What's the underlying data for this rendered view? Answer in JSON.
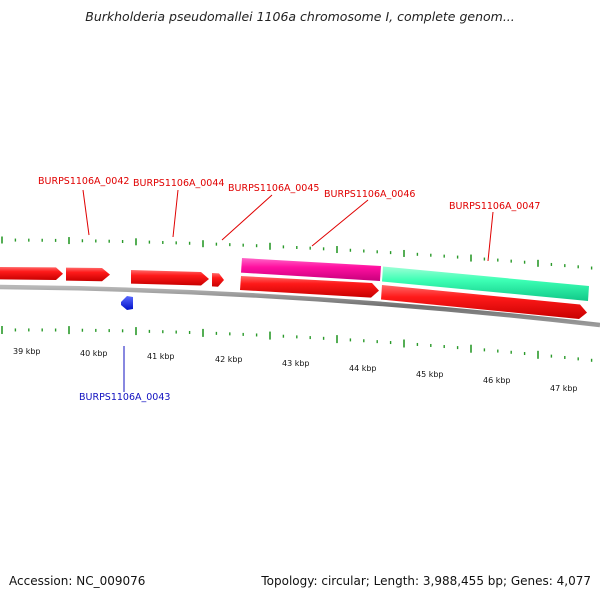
{
  "title": "Burkholderia pseudomallei 1106a chromosome I, complete genom...",
  "footer": {
    "accession": "Accession: NC_009076",
    "summary": "Topology: circular; Length: 3,988,455 bp; Genes: 4,077"
  },
  "genes": [
    {
      "id": "g0042",
      "label": "BURPS1106A_0042",
      "color": "#ff0000"
    },
    {
      "id": "g0043",
      "label": "BURPS1106A_0043",
      "color": "#0022ff"
    },
    {
      "id": "g0044",
      "label": "BURPS1106A_0044",
      "color": "#ff0000"
    },
    {
      "id": "g0045",
      "label": "BURPS1106A_0045",
      "color": "#ff0000"
    },
    {
      "id": "g0046",
      "label": "BURPS1106A_0046",
      "color": "#ff00a0"
    },
    {
      "id": "g0047",
      "label": "BURPS1106A_0047",
      "color": "#33ffb0"
    }
  ],
  "scale": {
    "ticks": [
      "39 kbp",
      "40 kbp",
      "41 kbp",
      "42 kbp",
      "43 kbp",
      "44 kbp",
      "45 kbp",
      "46 kbp",
      "47 kbp"
    ]
  },
  "colors": {
    "forward_strand": "#ff0000",
    "reverse_strand": "#0022ff",
    "backbone": "#808080",
    "ticks": "#2a9a2a"
  }
}
